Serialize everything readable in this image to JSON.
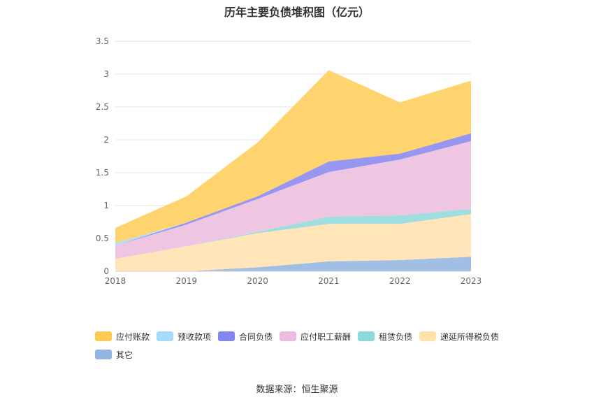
{
  "title": "历年主要负债堆积图（亿元）",
  "source": "数据来源：恒生聚源",
  "chart_data": {
    "type": "area",
    "stacked": true,
    "categories": [
      "2018",
      "2019",
      "2020",
      "2021",
      "2022",
      "2023"
    ],
    "yticks": [
      "0",
      "0.5",
      "1",
      "1.5",
      "2",
      "2.5",
      "3",
      "3.5"
    ],
    "ylim": [
      0,
      3.5
    ],
    "grid": true,
    "legend_position": "bottom",
    "series": [
      {
        "name": "其它",
        "color": "#91b4e0",
        "values": [
          0.0,
          0.0,
          0.06,
          0.15,
          0.17,
          0.22
        ]
      },
      {
        "name": "递延所得税负债",
        "color": "#ffe1aa",
        "values": [
          0.19,
          0.38,
          0.52,
          0.57,
          0.55,
          0.65
        ]
      },
      {
        "name": "租赁负债",
        "color": "#8dd8d8",
        "values": [
          0.0,
          0.0,
          0.02,
          0.11,
          0.13,
          0.08
        ]
      },
      {
        "name": "应付职工薪酬",
        "color": "#ebbcdd",
        "values": [
          0.2,
          0.33,
          0.5,
          0.68,
          0.85,
          1.03
        ]
      },
      {
        "name": "合同负债",
        "color": "#8585f0",
        "values": [
          0.0,
          0.03,
          0.04,
          0.16,
          0.09,
          0.12
        ]
      },
      {
        "name": "预收款项",
        "color": "#a6dcfa",
        "values": [
          0.04,
          0.0,
          0.0,
          0.0,
          0.0,
          0.0
        ]
      },
      {
        "name": "应付账款",
        "color": "#ffcb55",
        "values": [
          0.23,
          0.4,
          0.82,
          1.39,
          0.78,
          0.8
        ]
      }
    ],
    "legend_order": [
      "应付账款",
      "预收款项",
      "合同负债",
      "应付职工薪酬",
      "租赁负债",
      "递延所得税负债",
      "其它"
    ]
  }
}
